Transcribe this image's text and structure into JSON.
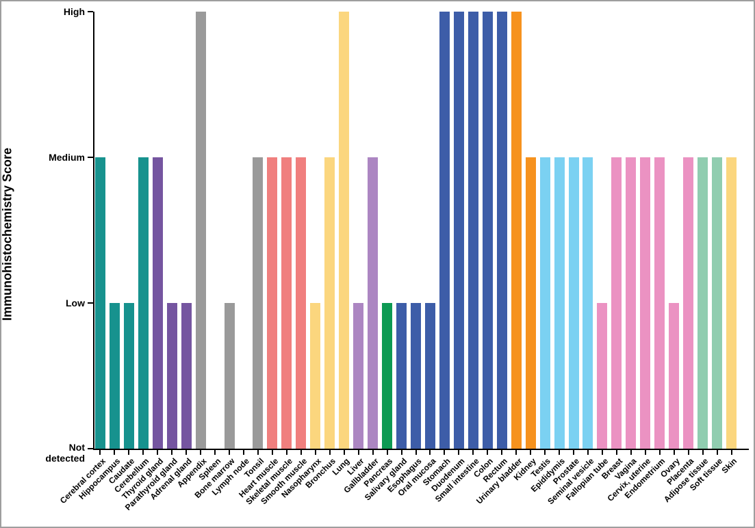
{
  "chart_data": {
    "type": "bar",
    "title": "",
    "xlabel": "",
    "ylabel": "Immunohistochemistry Score",
    "ylim": [
      0,
      3
    ],
    "grid": false,
    "legend": false,
    "ytick_labels": [
      "Not detected",
      "Low",
      "Medium",
      "High"
    ],
    "palette": {
      "brain": "#17928E",
      "endocrine": "#7555A0",
      "lymphoid_immune": "#9A9A9A",
      "muscle": "#F07F7E",
      "respiratory": "#FBD67E",
      "liver_gallbladder": "#AC86C2",
      "pancreas": "#0D9A53",
      "gastrointestinal": "#3D5DA8",
      "kidney_urinary": "#F6921E",
      "male_reproductive": "#7BD1F2",
      "female_reproductive": "#EB92C2",
      "adipose_soft": "#90CDB0",
      "skin": "#FBD67E"
    },
    "categories": [
      "Cerebral cortex",
      "Hippocampus",
      "Caudate",
      "Cerebellum",
      "Thyroid gland",
      "Parathyroid gland",
      "Adrenal gland",
      "Appendix",
      "Spleen",
      "Bone marrow",
      "Lymph node",
      "Tonsil",
      "Heart muscle",
      "Skeletal muscle",
      "Smooth muscle",
      "Nasopharynx",
      "Bronchus",
      "Lung",
      "Liver",
      "Gallbladder",
      "Pancreas",
      "Salivary gland",
      "Esophagus",
      "Oral mucosa",
      "Stomach",
      "Duodenum",
      "Small intestine",
      "Colon",
      "Rectum",
      "Urinary bladder",
      "Kidney",
      "Testis",
      "Epididymis",
      "Prostate",
      "Seminal vesicle",
      "Fallopian tube",
      "Breast",
      "Vagina",
      "Cervix, uterine",
      "Endometrium",
      "Ovary",
      "Placenta",
      "Adipose tissue",
      "Soft tissue",
      "Skin"
    ],
    "values": [
      2,
      1,
      1,
      2,
      2,
      1,
      1,
      3,
      0,
      1,
      0,
      2,
      2,
      2,
      2,
      1,
      2,
      3,
      1,
      2,
      1,
      1,
      1,
      1,
      3,
      3,
      3,
      3,
      3,
      3,
      2,
      2,
      2,
      2,
      2,
      1,
      2,
      2,
      2,
      2,
      1,
      2,
      2,
      2,
      2
    ],
    "value_labels": [
      "Medium",
      "Low",
      "Low",
      "Medium",
      "Medium",
      "Low",
      "Low",
      "High",
      "Not detected",
      "Low",
      "Not detected",
      "Medium",
      "Medium",
      "Medium",
      "Medium",
      "Low",
      "Medium",
      "High",
      "Low",
      "Medium",
      "Low",
      "Low",
      "Low",
      "Low",
      "High",
      "High",
      "High",
      "High",
      "High",
      "High",
      "Medium",
      "Medium",
      "Medium",
      "Medium",
      "Medium",
      "Low",
      "Medium",
      "Medium",
      "Medium",
      "Medium",
      "Low",
      "Medium",
      "Medium",
      "Medium",
      "Medium"
    ],
    "colors": [
      "#17928E",
      "#17928E",
      "#17928E",
      "#17928E",
      "#7555A0",
      "#7555A0",
      "#7555A0",
      "#9A9A9A",
      "#9A9A9A",
      "#9A9A9A",
      "#9A9A9A",
      "#9A9A9A",
      "#F07F7E",
      "#F07F7E",
      "#F07F7E",
      "#FBD67E",
      "#FBD67E",
      "#FBD67E",
      "#AC86C2",
      "#AC86C2",
      "#0D9A53",
      "#3D5DA8",
      "#3D5DA8",
      "#3D5DA8",
      "#3D5DA8",
      "#3D5DA8",
      "#3D5DA8",
      "#3D5DA8",
      "#3D5DA8",
      "#F6921E",
      "#F6921E",
      "#7BD1F2",
      "#7BD1F2",
      "#7BD1F2",
      "#7BD1F2",
      "#EB92C2",
      "#EB92C2",
      "#EB92C2",
      "#EB92C2",
      "#EB92C2",
      "#EB92C2",
      "#EB92C2",
      "#90CDB0",
      "#90CDB0",
      "#FBD67E"
    ]
  },
  "layout_colors": {
    "axis": "#000000",
    "frame_border": "#9e9e9e",
    "background": "#ffffff"
  }
}
